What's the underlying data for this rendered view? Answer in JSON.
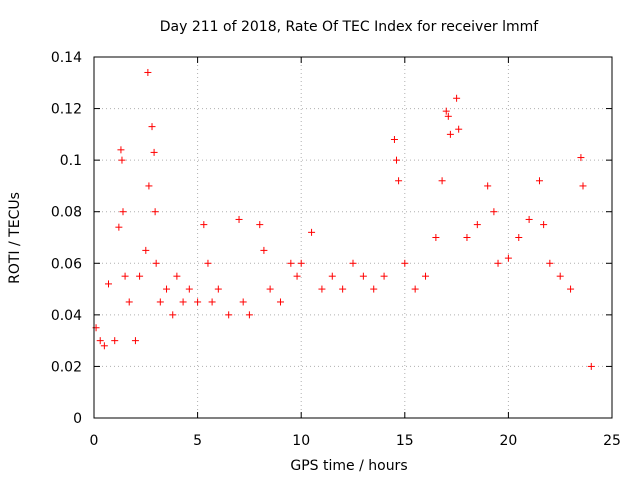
{
  "chart_data": {
    "type": "scatter",
    "title": "Day 211 of 2018, Rate Of TEC Index for receiver lmmf",
    "xlabel": "GPS time / hours",
    "ylabel": "ROTI / TECUs",
    "xlim": [
      0,
      25
    ],
    "ylim": [
      0,
      0.14
    ],
    "xticks": [
      0,
      5,
      10,
      15,
      20,
      25
    ],
    "xtick_labels": [
      "0",
      "5",
      "10",
      "15",
      "20",
      "25"
    ],
    "yticks": [
      0,
      0.02,
      0.04,
      0.06,
      0.08,
      0.1,
      0.12,
      0.14
    ],
    "ytick_labels": [
      "0",
      "0.02",
      "0.04",
      "0.06",
      "0.08",
      "0.1",
      "0.12",
      "0.14"
    ],
    "grid": true,
    "marker": "plus",
    "color": "#ff0000",
    "series": [
      {
        "name": "ROTI",
        "x": [
          0.1,
          0.3,
          0.5,
          0.7,
          1.0,
          1.2,
          1.3,
          1.35,
          1.4,
          1.5,
          1.7,
          2.0,
          2.2,
          2.5,
          2.6,
          2.65,
          2.8,
          2.9,
          2.95,
          3.0,
          3.2,
          3.5,
          3.8,
          4.0,
          4.3,
          4.6,
          5.0,
          5.3,
          5.5,
          5.7,
          6.0,
          6.5,
          7.0,
          7.2,
          7.5,
          8.0,
          8.2,
          8.5,
          9.0,
          9.5,
          9.8,
          10.0,
          10.5,
          11.0,
          11.5,
          12.0,
          12.5,
          13.0,
          13.5,
          14.0,
          14.5,
          14.6,
          14.7,
          15.0,
          15.5,
          16.0,
          16.5,
          16.8,
          17.0,
          17.1,
          17.2,
          17.5,
          17.6,
          18.0,
          18.5,
          19.0,
          19.3,
          19.5,
          20.0,
          20.5,
          21.0,
          21.5,
          21.7,
          22.0,
          22.5,
          23.0,
          23.5,
          23.6,
          24.0
        ],
        "y": [
          0.035,
          0.03,
          0.028,
          0.052,
          0.03,
          0.074,
          0.104,
          0.1,
          0.08,
          0.055,
          0.045,
          0.03,
          0.055,
          0.065,
          0.134,
          0.09,
          0.113,
          0.103,
          0.08,
          0.06,
          0.045,
          0.05,
          0.04,
          0.055,
          0.045,
          0.05,
          0.045,
          0.075,
          0.06,
          0.045,
          0.05,
          0.04,
          0.077,
          0.045,
          0.04,
          0.075,
          0.065,
          0.05,
          0.045,
          0.06,
          0.055,
          0.06,
          0.072,
          0.05,
          0.055,
          0.05,
          0.06,
          0.055,
          0.05,
          0.055,
          0.108,
          0.1,
          0.092,
          0.06,
          0.05,
          0.055,
          0.07,
          0.092,
          0.119,
          0.117,
          0.11,
          0.124,
          0.112,
          0.07,
          0.075,
          0.09,
          0.08,
          0.06,
          0.062,
          0.07,
          0.077,
          0.092,
          0.075,
          0.06,
          0.055,
          0.05,
          0.101,
          0.09,
          0.02
        ]
      }
    ]
  }
}
